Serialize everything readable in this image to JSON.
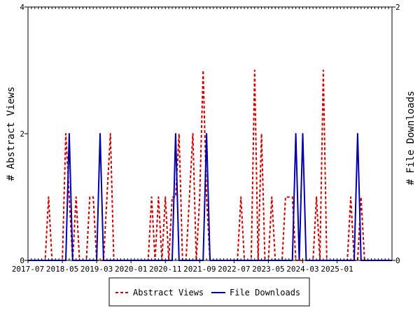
{
  "chart_data": {
    "type": "line",
    "title": "",
    "x_start_month": "2017-07",
    "x_end_month": "2026-05",
    "x_tick_labels": [
      "2017-07",
      "2018-05",
      "2019-03",
      "2020-01",
      "2020-11",
      "2021-09",
      "2022-07",
      "2023-05",
      "2024-03",
      "2025-01"
    ],
    "y_left": {
      "label": "# Abstract Views",
      "min": 0,
      "max": 4,
      "ticks": [
        0,
        2,
        4
      ]
    },
    "y_right": {
      "label": "# File Downloads",
      "min": 0,
      "max": 2,
      "ticks": [
        0,
        2
      ]
    },
    "legend_position": "bottom-center",
    "series": [
      {
        "name": "Abstract Views",
        "color": "#cc0000",
        "dash": true,
        "axis": "left",
        "points": [
          [
            "2018-01",
            1
          ],
          [
            "2018-06",
            2
          ],
          [
            "2018-07",
            1
          ],
          [
            "2018-09",
            1
          ],
          [
            "2019-01",
            1
          ],
          [
            "2019-02",
            1
          ],
          [
            "2019-06",
            1
          ],
          [
            "2019-07",
            2
          ],
          [
            "2020-07",
            1
          ],
          [
            "2020-09",
            1
          ],
          [
            "2020-11",
            1
          ],
          [
            "2021-01",
            1
          ],
          [
            "2021-02",
            1
          ],
          [
            "2021-03",
            2
          ],
          [
            "2021-06",
            1
          ],
          [
            "2021-07",
            2
          ],
          [
            "2021-09",
            1
          ],
          [
            "2021-10",
            3
          ],
          [
            "2021-11",
            1
          ],
          [
            "2022-09",
            1
          ],
          [
            "2023-01",
            3
          ],
          [
            "2023-03",
            2
          ],
          [
            "2023-06",
            1
          ],
          [
            "2023-10",
            1
          ],
          [
            "2023-11",
            1
          ],
          [
            "2023-12",
            1
          ],
          [
            "2024-07",
            1
          ],
          [
            "2024-09",
            3
          ],
          [
            "2025-05",
            1
          ],
          [
            "2025-08",
            1
          ]
        ]
      },
      {
        "name": "File Downloads",
        "color": "#0000aa",
        "dash": false,
        "axis": "right",
        "points": [
          [
            "2018-07",
            1
          ],
          [
            "2019-04",
            1
          ],
          [
            "2021-02",
            1
          ],
          [
            "2021-11",
            1
          ],
          [
            "2024-01",
            1
          ],
          [
            "2024-03",
            1
          ],
          [
            "2025-07",
            1
          ]
        ]
      }
    ]
  }
}
